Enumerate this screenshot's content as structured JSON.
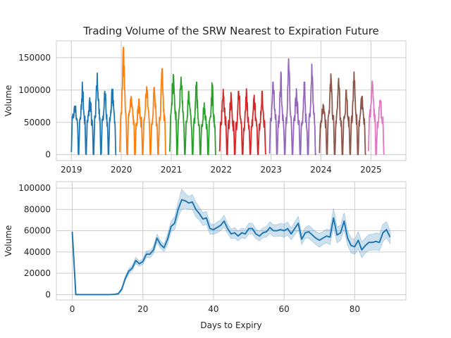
{
  "chart_data": [
    {
      "type": "line",
      "title": "Trading Volume of the SRW Nearest to Expiration Future",
      "xlabel": "",
      "ylabel": "Volume",
      "x_tick_labels": [
        "2019",
        "2020",
        "2021",
        "2022",
        "2023",
        "2024",
        "2025"
      ],
      "y_tick_labels": [
        "0",
        "50000",
        "100000",
        "150000"
      ],
      "xlim": [
        2018.7,
        2025.7
      ],
      "ylim": [
        -9000,
        176000
      ],
      "grid": true,
      "legend": "none",
      "series": [
        {
          "color": "#1f77b4",
          "segments": [
            {
              "start": 2019.0,
              "end": 2019.9,
              "cycles": [
                {
                  "base": 55000,
                  "peak": 75000
                },
                {
                  "base": 52000,
                  "peak": 112000
                },
                {
                  "base": 50000,
                  "peak": 88000
                },
                {
                  "base": 60000,
                  "peak": 126000
                },
                {
                  "base": 52000,
                  "peak": 98000
                },
                {
                  "base": 55000,
                  "peak": 101000
                }
              ]
            }
          ]
        },
        {
          "color": "#ff7f0e",
          "segments": [
            {
              "start": 2019.97,
              "end": 2020.9,
              "cycles": [
                {
                  "base": 60000,
                  "peak": 166000
                },
                {
                  "base": 55000,
                  "peak": 90000
                },
                {
                  "base": 50000,
                  "peak": 86000
                },
                {
                  "base": 55000,
                  "peak": 105000
                },
                {
                  "base": 50000,
                  "peak": 104000
                },
                {
                  "base": 55000,
                  "peak": 133000
                }
              ]
            }
          ]
        },
        {
          "color": "#2ca02c",
          "segments": [
            {
              "start": 2020.97,
              "end": 2021.9,
              "cycles": [
                {
                  "base": 60000,
                  "peak": 124000
                },
                {
                  "base": 55000,
                  "peak": 120000
                },
                {
                  "base": 50000,
                  "peak": 98000
                },
                {
                  "base": 48000,
                  "peak": 112000
                },
                {
                  "base": 45000,
                  "peak": 80000
                },
                {
                  "base": 50000,
                  "peak": 111000
                }
              ]
            }
          ]
        },
        {
          "color": "#d62728",
          "segments": [
            {
              "start": 2021.97,
              "end": 2022.9,
              "cycles": [
                {
                  "base": 50000,
                  "peak": 101000
                },
                {
                  "base": 45000,
                  "peak": 96000
                },
                {
                  "base": 45000,
                  "peak": 98000
                },
                {
                  "base": 42000,
                  "peak": 102000
                },
                {
                  "base": 45000,
                  "peak": 92000
                },
                {
                  "base": 45000,
                  "peak": 98000
                }
              ]
            }
          ]
        },
        {
          "color": "#9467bd",
          "segments": [
            {
              "start": 2022.97,
              "end": 2023.9,
              "cycles": [
                {
                  "base": 55000,
                  "peak": 112000
                },
                {
                  "base": 50000,
                  "peak": 128000
                },
                {
                  "base": 50000,
                  "peak": 148000
                },
                {
                  "base": 50000,
                  "peak": 102000
                },
                {
                  "base": 45000,
                  "peak": 112000
                },
                {
                  "base": 55000,
                  "peak": 140000
                }
              ]
            }
          ]
        },
        {
          "color": "#8c564b",
          "segments": [
            {
              "start": 2023.97,
              "end": 2024.9,
              "cycles": [
                {
                  "base": 50000,
                  "peak": 78000
                },
                {
                  "base": 55000,
                  "peak": 125000
                },
                {
                  "base": 50000,
                  "peak": 118000
                },
                {
                  "base": 50000,
                  "peak": 100000
                },
                {
                  "base": 55000,
                  "peak": 128000
                },
                {
                  "base": 50000,
                  "peak": 90000
                }
              ]
            }
          ]
        },
        {
          "color": "#e377c2",
          "segments": [
            {
              "start": 2024.95,
              "end": 2025.27,
              "cycles": [
                {
                  "base": 60000,
                  "peak": 114000
                },
                {
                  "base": 50000,
                  "peak": 84000
                }
              ]
            }
          ]
        }
      ]
    },
    {
      "type": "line",
      "title": "",
      "xlabel": "Days to Expiry",
      "ylabel": "Volume",
      "x_tick_labels": [
        "0",
        "20",
        "40",
        "60",
        "80"
      ],
      "y_tick_labels": [
        "0",
        "20000",
        "40000",
        "60000",
        "80000",
        "100000"
      ],
      "xlim": [
        -4.5,
        94.5
      ],
      "ylim": [
        -5000,
        106000
      ],
      "grid": true,
      "legend": "none",
      "series": [
        {
          "color": "#1f77b4",
          "band": "confidence interval",
          "x": [
            0,
            1,
            2,
            3,
            4,
            5,
            6,
            7,
            8,
            9,
            10,
            11,
            12,
            13,
            14,
            15,
            16,
            17,
            18,
            19,
            20,
            21,
            22,
            23,
            24,
            25,
            26,
            27,
            28,
            29,
            30,
            31,
            32,
            33,
            34,
            35,
            36,
            37,
            38,
            39,
            40,
            41,
            42,
            43,
            44,
            45,
            46,
            47,
            48,
            49,
            50,
            51,
            52,
            53,
            54,
            55,
            56,
            57,
            58,
            59,
            60,
            61,
            62,
            63,
            64,
            65,
            66,
            67,
            68,
            69,
            70,
            71,
            72,
            73,
            74,
            75,
            76,
            77,
            78,
            79,
            80,
            81,
            82,
            83,
            84,
            85,
            86,
            87,
            88,
            89,
            90
          ],
          "y": [
            59000,
            0,
            0,
            0,
            0,
            0,
            0,
            0,
            0,
            0,
            0,
            100,
            300,
            800,
            5000,
            15000,
            22000,
            25000,
            32000,
            29000,
            31000,
            38000,
            38000,
            42000,
            53000,
            47000,
            44000,
            52000,
            64000,
            67000,
            80000,
            89000,
            88000,
            86000,
            87000,
            80000,
            76000,
            71000,
            72000,
            62000,
            61000,
            63000,
            65000,
            69000,
            62000,
            57000,
            58000,
            55000,
            58000,
            57000,
            62000,
            62000,
            57000,
            55000,
            58000,
            59000,
            63000,
            60000,
            60000,
            61000,
            60000,
            62000,
            57000,
            62000,
            67000,
            52000,
            58000,
            59000,
            56000,
            53000,
            51000,
            53000,
            55000,
            54000,
            72000,
            56000,
            58000,
            69000,
            53000,
            46000,
            45000,
            51000,
            42000,
            46000,
            49000,
            49000,
            50000,
            49000,
            58000,
            61000,
            54000
          ],
          "lower": [
            59000,
            0,
            0,
            0,
            0,
            0,
            0,
            0,
            0,
            0,
            0,
            0,
            0,
            200,
            3500,
            13000,
            19500,
            22500,
            29000,
            26500,
            28500,
            35000,
            34500,
            38500,
            49000,
            43500,
            40500,
            47000,
            59000,
            61000,
            73000,
            80000,
            81000,
            80000,
            80000,
            73000,
            70000,
            65000,
            66000,
            57000,
            56500,
            58000,
            60000,
            63500,
            57500,
            52500,
            53000,
            50500,
            53500,
            52500,
            57000,
            57000,
            52500,
            50500,
            53500,
            54000,
            57500,
            54500,
            54500,
            55000,
            54000,
            56000,
            51500,
            56000,
            60500,
            47000,
            53000,
            53000,
            50000,
            47000,
            44500,
            47000,
            48500,
            47000,
            63000,
            48500,
            51000,
            61000,
            46000,
            39000,
            38000,
            43000,
            34500,
            39000,
            41500,
            41500,
            42000,
            41000,
            50000,
            53500,
            48000
          ],
          "upper": [
            59000,
            0,
            0,
            0,
            0,
            0,
            0,
            0,
            0,
            0,
            0,
            300,
            700,
            1500,
            6500,
            17000,
            24500,
            27500,
            35000,
            31500,
            33500,
            41000,
            41500,
            45500,
            57000,
            50500,
            47500,
            57000,
            69000,
            73000,
            87000,
            99000,
            95000,
            92000,
            94000,
            87000,
            82000,
            77000,
            78000,
            67000,
            65500,
            68000,
            70000,
            74500,
            66500,
            61500,
            63000,
            59500,
            62500,
            61500,
            67000,
            67000,
            61500,
            59500,
            62500,
            64000,
            68500,
            65500,
            65500,
            67000,
            66000,
            68000,
            62500,
            68000,
            73500,
            57000,
            63000,
            65000,
            62000,
            59000,
            57500,
            59000,
            61500,
            61000,
            81000,
            63500,
            65000,
            77000,
            60000,
            53000,
            52000,
            59000,
            49500,
            53000,
            56500,
            56500,
            58000,
            57000,
            66000,
            68500,
            60000
          ]
        }
      ]
    }
  ]
}
